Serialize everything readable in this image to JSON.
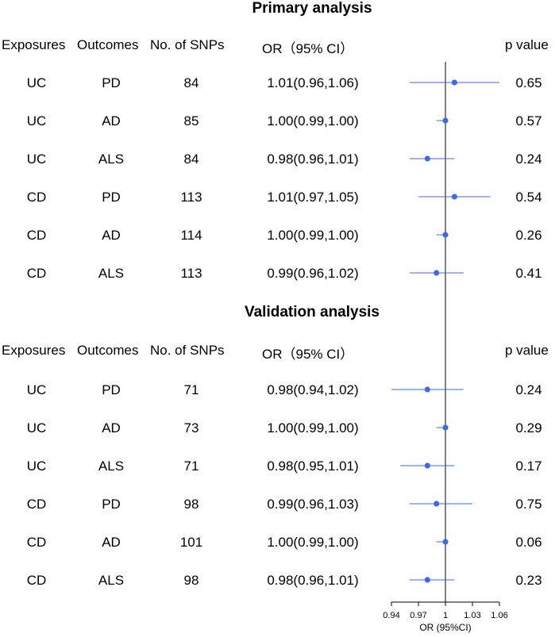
{
  "chart_data": {
    "type": "forest",
    "sections": [
      {
        "title": "Primary analysis",
        "headers": {
          "exposures": "Exposures",
          "outcomes": "Outcomes",
          "snps": "No. of SNPs",
          "or": "OR（95% CI）",
          "p": "p value"
        },
        "rows": [
          {
            "exposure": "UC",
            "outcome": "PD",
            "snps": "84",
            "or_text": "1.01(0.96,1.06)",
            "or": 1.01,
            "lo": 0.96,
            "hi": 1.06,
            "p": "0.65"
          },
          {
            "exposure": "UC",
            "outcome": "AD",
            "snps": "85",
            "or_text": "1.00(0.99,1.00)",
            "or": 1.0,
            "lo": 0.99,
            "hi": 1.0,
            "p": "0.57"
          },
          {
            "exposure": "UC",
            "outcome": "ALS",
            "snps": "84",
            "or_text": "0.98(0.96,1.01)",
            "or": 0.98,
            "lo": 0.96,
            "hi": 1.01,
            "p": "0.24"
          },
          {
            "exposure": "CD",
            "outcome": "PD",
            "snps": "113",
            "or_text": "1.01(0.97,1.05)",
            "or": 1.01,
            "lo": 0.97,
            "hi": 1.05,
            "p": "0.54"
          },
          {
            "exposure": "CD",
            "outcome": "AD",
            "snps": "114",
            "or_text": "1.00(0.99,1.00)",
            "or": 1.0,
            "lo": 0.99,
            "hi": 1.0,
            "p": "0.26"
          },
          {
            "exposure": "CD",
            "outcome": "ALS",
            "snps": "113",
            "or_text": "0.99(0.96,1.02)",
            "or": 0.99,
            "lo": 0.96,
            "hi": 1.02,
            "p": "0.41"
          }
        ]
      },
      {
        "title": "Validation analysis",
        "headers": {
          "exposures": "Exposures",
          "outcomes": "Outcomes",
          "snps": "No. of SNPs",
          "or": "OR（95% CI）",
          "p": "p value"
        },
        "rows": [
          {
            "exposure": "UC",
            "outcome": "PD",
            "snps": "71",
            "or_text": "0.98(0.94,1.02)",
            "or": 0.98,
            "lo": 0.94,
            "hi": 1.02,
            "p": "0.24"
          },
          {
            "exposure": "UC",
            "outcome": "AD",
            "snps": "73",
            "or_text": "1.00(0.99,1.00)",
            "or": 1.0,
            "lo": 0.99,
            "hi": 1.0,
            "p": "0.29"
          },
          {
            "exposure": "UC",
            "outcome": "ALS",
            "snps": "71",
            "or_text": "0.98(0.95,1.01)",
            "or": 0.98,
            "lo": 0.95,
            "hi": 1.01,
            "p": "0.17"
          },
          {
            "exposure": "CD",
            "outcome": "PD",
            "snps": "98",
            "or_text": "0.99(0.96,1.03)",
            "or": 0.99,
            "lo": 0.96,
            "hi": 1.03,
            "p": "0.75"
          },
          {
            "exposure": "CD",
            "outcome": "AD",
            "snps": "101",
            "or_text": "1.00(0.99,1.00)",
            "or": 1.0,
            "lo": 0.99,
            "hi": 1.0,
            "p": "0.06"
          },
          {
            "exposure": "CD",
            "outcome": "ALS",
            "snps": "98",
            "or_text": "0.98(0.96,1.01)",
            "or": 0.98,
            "lo": 0.96,
            "hi": 1.01,
            "p": "0.23"
          }
        ]
      }
    ],
    "x_axis": {
      "label": "OR (95%CI)",
      "ticks": [
        0.94,
        0.97,
        1,
        1.03,
        1.06
      ],
      "tick_labels": [
        "0.94",
        "0.97",
        "1",
        "1.03",
        "1.06"
      ],
      "range": [
        0.94,
        1.06
      ],
      "reference": 1
    },
    "colors": {
      "marker": "#4169e1",
      "line": "#000000"
    }
  }
}
